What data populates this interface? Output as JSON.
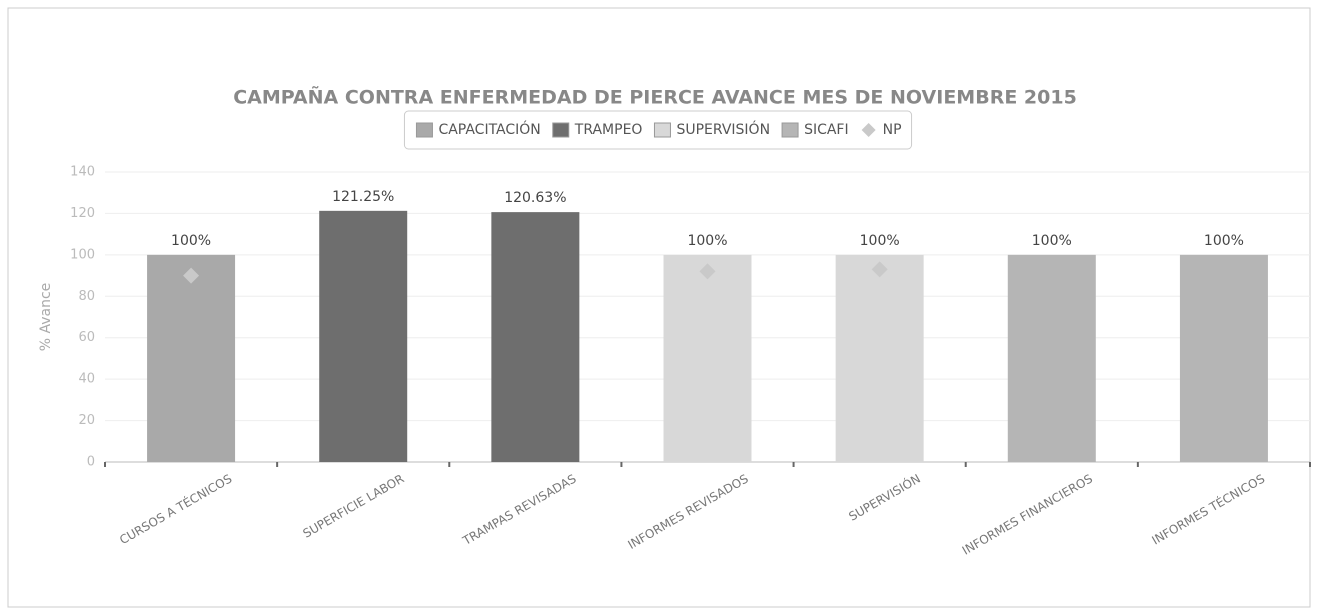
{
  "chart_data": {
    "type": "bar",
    "title": "CAMPAÑA CONTRA ENFERMEDAD DE PIERCE AVANCE MES DE NOVIEMBRE 2015",
    "y_label": "% Avance",
    "categories": [
      "CURSOS A TÉCNICOS",
      "SUPERFICIE LABOR",
      "TRAMPAS REVISADAS",
      "INFORMES REVISADOS",
      "SUPERVISIÓN",
      "INFORMES FINANCIEROS",
      "INFORMES TÉCNICOS"
    ],
    "series": [
      {
        "name": "CAPACITACIÓN",
        "color": "#a9a9a9",
        "values": [
          100,
          null,
          null,
          null,
          null,
          null,
          null
        ],
        "value_labels": [
          "100%",
          null,
          null,
          null,
          null,
          null,
          null
        ]
      },
      {
        "name": "TRAMPEO",
        "color": "#6e6e6e",
        "values": [
          null,
          121.25,
          120.63,
          null,
          null,
          null,
          null
        ],
        "value_labels": [
          null,
          "121.25%",
          "120.63%",
          null,
          null,
          null,
          null
        ]
      },
      {
        "name": "SUPERVISIÓN",
        "color": "#d8d8d8",
        "values": [
          null,
          null,
          null,
          100,
          100,
          null,
          null
        ],
        "value_labels": [
          null,
          null,
          null,
          "100%",
          "100%",
          null,
          null
        ]
      },
      {
        "name": "SICAFI",
        "color": "#b5b5b5",
        "values": [
          null,
          null,
          null,
          null,
          null,
          100,
          100
        ],
        "value_labels": [
          null,
          null,
          null,
          null,
          null,
          "100%",
          "100%"
        ]
      },
      {
        "name": "NP",
        "color": "#c9c9c9",
        "marker": "diamond",
        "values": [
          90,
          null,
          null,
          92,
          93,
          null,
          null
        ]
      }
    ],
    "ylim": [
      0,
      140
    ],
    "yticks": [
      0,
      20,
      40,
      60,
      80,
      100,
      120,
      140
    ],
    "grid": true
  }
}
